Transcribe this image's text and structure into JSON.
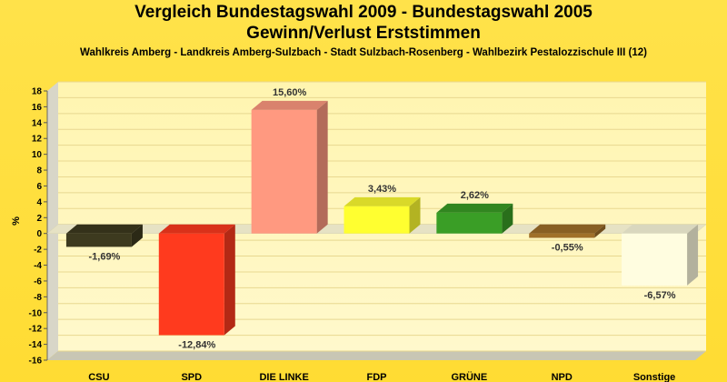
{
  "chart_data": {
    "type": "bar",
    "title_line1": "Vergleich Bundestagswahl 2009 - Bundestagswahl 2005",
    "title_line2": "Gewinn/Verlust Erststimmen",
    "subtitle": "Wahlkreis Amberg - Landkreis Amberg-Sulzbach - Stadt Sulzbach-Rosenberg - Wahlbezirk Pestalozzischule III (12)",
    "ylabel": "%",
    "ylim": [
      -16,
      18
    ],
    "yticks": [
      18,
      16,
      14,
      12,
      10,
      8,
      6,
      4,
      2,
      0,
      -2,
      -4,
      -6,
      -8,
      -10,
      -12,
      -14,
      -16
    ],
    "categories": [
      "CSU",
      "SPD",
      "DIE LINKE",
      "FDP",
      "GRÜNE",
      "NPD",
      "Sonstige"
    ],
    "values": [
      -1.69,
      -12.84,
      15.6,
      3.43,
      2.62,
      -0.55,
      -6.57
    ],
    "value_labels": [
      "-1,69%",
      "-12,84%",
      "15,60%",
      "3,43%",
      "2,62%",
      "-0,55%",
      "-6,57%"
    ],
    "colors": [
      "#3d3a1f",
      "#ff3a1e",
      "#ff9980",
      "#ffff30",
      "#3a9e26",
      "#a0702a",
      "#fffde0"
    ],
    "grid": true,
    "legend": "none"
  }
}
